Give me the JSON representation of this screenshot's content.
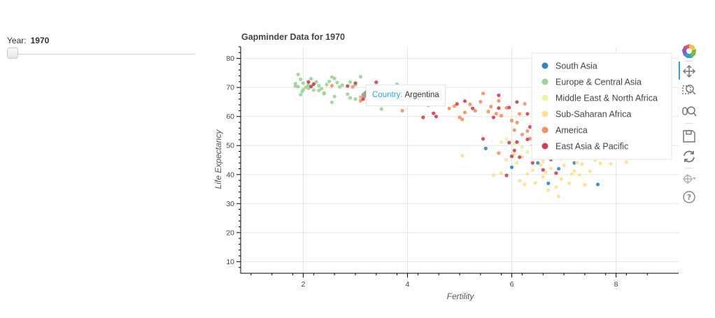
{
  "slider": {
    "label": "Year:",
    "value": "1970"
  },
  "tooltip": {
    "key": "Country:",
    "value": "Argentina"
  },
  "toolbar": {
    "items": [
      {
        "icon": "bokeh-logo-icon"
      },
      {
        "icon": "pan-icon"
      },
      {
        "icon": "box-zoom-icon"
      },
      {
        "icon": "wheel-zoom-icon"
      },
      {
        "icon": "save-icon"
      },
      {
        "icon": "reset-icon"
      },
      {
        "icon": "hover-icon"
      },
      {
        "icon": "help-icon"
      }
    ],
    "active_color": "#26aae1"
  },
  "chart_data": {
    "type": "scatter",
    "title": "Gapminder Data for 1970",
    "xlabel": "Fertility",
    "ylabel": "Life Expectancy",
    "xlim": [
      0.8,
      9.2
    ],
    "ylim": [
      6,
      84
    ],
    "x_ticks": [
      2,
      4,
      6,
      8
    ],
    "y_ticks": [
      10,
      20,
      30,
      40,
      50,
      60,
      70,
      80
    ],
    "grid": true,
    "legend_position": "top-right",
    "series": [
      {
        "name": "South Asia",
        "color": "#3288bd",
        "points": [
          [
            5.5,
            49
          ],
          [
            6.0,
            42.5
          ],
          [
            6.5,
            44
          ],
          [
            6.7,
            37
          ],
          [
            7.2,
            44
          ],
          [
            7.65,
            36.6
          ],
          [
            6.9,
            42
          ]
        ]
      },
      {
        "name": "Europe & Central Asia",
        "color": "#99d594",
        "points": [
          [
            1.9,
            74.5
          ],
          [
            1.95,
            72.8
          ],
          [
            2.0,
            71.5
          ],
          [
            1.85,
            70.5
          ],
          [
            2.05,
            70.1
          ],
          [
            2.1,
            69.7
          ],
          [
            2.0,
            69.2
          ],
          [
            1.98,
            68.6
          ],
          [
            2.2,
            71.3
          ],
          [
            2.3,
            70.6
          ],
          [
            2.35,
            69.6
          ],
          [
            2.45,
            71.0
          ],
          [
            2.5,
            72.1
          ],
          [
            2.55,
            73.6
          ],
          [
            2.6,
            73.1
          ],
          [
            2.65,
            71.7
          ],
          [
            2.7,
            70.2
          ],
          [
            2.2,
            69.1
          ],
          [
            2.9,
            71.9
          ],
          [
            3.0,
            70.9
          ],
          [
            3.1,
            73.7
          ],
          [
            2.4,
            68.1
          ],
          [
            2.6,
            66.9
          ],
          [
            2.9,
            66.4
          ],
          [
            3.1,
            66.7
          ],
          [
            2.55,
            64.9
          ],
          [
            3.5,
            62.6
          ],
          [
            3.8,
            71.1
          ],
          [
            1.9,
            70.3
          ],
          [
            2.1,
            70.8
          ],
          [
            2.15,
            73.0
          ],
          [
            2.25,
            71.9
          ],
          [
            2.3,
            69.0
          ],
          [
            2.4,
            67.9
          ],
          [
            1.95,
            67.5
          ],
          [
            1.85,
            71.3
          ],
          [
            2.75,
            70.8
          ],
          [
            2.85,
            67.7
          ],
          [
            3.0,
            66.0
          ]
        ]
      },
      {
        "name": "Middle East & North Africa",
        "color": "#e6f598",
        "points": [
          [
            5.9,
            52.2
          ],
          [
            6.05,
            50.8
          ],
          [
            6.2,
            49.4
          ],
          [
            6.6,
            50.0
          ],
          [
            7.1,
            52.7
          ],
          [
            7.3,
            56.1
          ],
          [
            6.8,
            57.3
          ],
          [
            6.4,
            58.6
          ],
          [
            7.2,
            55.2
          ],
          [
            6.3,
            47.8
          ],
          [
            5.8,
            51.1
          ],
          [
            6.9,
            54.6
          ],
          [
            7.0,
            56.5
          ]
        ]
      },
      {
        "name": "Sub-Saharan Africa",
        "color": "#fee08b",
        "points": [
          [
            5.05,
            46.5
          ],
          [
            5.65,
            39.8
          ],
          [
            5.8,
            40.5
          ],
          [
            5.9,
            45.1
          ],
          [
            6.1,
            44.0
          ],
          [
            6.15,
            37.8
          ],
          [
            6.25,
            36.6
          ],
          [
            6.3,
            40.2
          ],
          [
            6.4,
            41.5
          ],
          [
            6.45,
            37.1
          ],
          [
            6.55,
            43.3
          ],
          [
            6.6,
            39.2
          ],
          [
            6.65,
            40.8
          ],
          [
            6.7,
            34.6
          ],
          [
            6.75,
            42.1
          ],
          [
            6.85,
            35.7
          ],
          [
            6.9,
            32.5
          ],
          [
            6.95,
            45.4
          ],
          [
            7.0,
            43.2
          ],
          [
            7.1,
            37.0
          ],
          [
            7.2,
            41.2
          ],
          [
            7.25,
            44.1
          ],
          [
            7.3,
            39.9
          ],
          [
            7.35,
            43.6
          ],
          [
            7.4,
            36.4
          ],
          [
            7.5,
            41.1
          ],
          [
            7.6,
            45.0
          ],
          [
            7.7,
            43.9
          ],
          [
            7.9,
            43.7
          ],
          [
            8.2,
            44.3
          ],
          [
            6.7,
            47.6
          ],
          [
            6.8,
            49.4
          ],
          [
            6.5,
            46.3
          ],
          [
            7.0,
            51.0
          ],
          [
            6.2,
            46.0
          ],
          [
            6.6,
            44.7
          ],
          [
            7.15,
            40.2
          ],
          [
            6.05,
            47.0
          ],
          [
            6.95,
            38.5
          ],
          [
            7.45,
            47.1
          ]
        ]
      },
      {
        "name": "America",
        "color": "#fc8d59",
        "points": [
          [
            3.2,
            67.5
          ],
          [
            3.3,
            69.2
          ],
          [
            3.1,
            65.4
          ],
          [
            3.15,
            66.9
          ],
          [
            3.9,
            62.0
          ],
          [
            4.4,
            63.9
          ],
          [
            4.8,
            62.8
          ],
          [
            5.0,
            59.7
          ],
          [
            5.1,
            61.4
          ],
          [
            5.2,
            64.2
          ],
          [
            5.3,
            62.0
          ],
          [
            5.4,
            65.1
          ],
          [
            5.45,
            67.9
          ],
          [
            5.6,
            63.4
          ],
          [
            5.7,
            61.0
          ],
          [
            5.75,
            65.4
          ],
          [
            5.8,
            60.3
          ],
          [
            5.9,
            63.0
          ],
          [
            6.0,
            58.6
          ],
          [
            6.05,
            55.3
          ],
          [
            6.1,
            57.9
          ],
          [
            6.15,
            60.9
          ],
          [
            6.2,
            53.8
          ],
          [
            6.3,
            55.0
          ],
          [
            6.35,
            52.4
          ],
          [
            6.4,
            50.2
          ],
          [
            5.75,
            47.4
          ],
          [
            5.05,
            59.0
          ],
          [
            4.9,
            63.6
          ],
          [
            2.95,
            70.2
          ],
          [
            2.55,
            70.6
          ],
          [
            5.55,
            61.7
          ],
          [
            6.25,
            64.4
          ]
        ]
      },
      {
        "name": "East Asia & Pacific",
        "color": "#d53e4f",
        "points": [
          [
            2.1,
            71.9
          ],
          [
            2.2,
            71.1
          ],
          [
            2.15,
            70.3
          ],
          [
            2.85,
            70.5
          ],
          [
            3.0,
            71.5
          ],
          [
            3.4,
            71.8
          ],
          [
            3.15,
            66.0
          ],
          [
            4.3,
            59.7
          ],
          [
            4.5,
            61.1
          ],
          [
            4.55,
            60.0
          ],
          [
            4.95,
            64.3
          ],
          [
            5.1,
            65.3
          ],
          [
            5.25,
            62.8
          ],
          [
            5.45,
            52.3
          ],
          [
            5.65,
            59.7
          ],
          [
            5.75,
            62.9
          ],
          [
            5.9,
            39.7
          ],
          [
            5.95,
            51.0
          ],
          [
            6.0,
            46.3
          ],
          [
            6.05,
            48.3
          ],
          [
            6.1,
            51.2
          ],
          [
            6.15,
            46.0
          ],
          [
            6.3,
            52.1
          ],
          [
            6.35,
            56.4
          ],
          [
            6.4,
            44.0
          ],
          [
            6.45,
            50.4
          ],
          [
            6.5,
            49.0
          ],
          [
            6.6,
            41.6
          ],
          [
            6.75,
            45.2
          ],
          [
            6.85,
            40.5
          ],
          [
            6.55,
            48.4
          ],
          [
            6.3,
            60.9
          ],
          [
            6.45,
            56.9
          ],
          [
            6.7,
            55.6
          ],
          [
            5.75,
            67.3
          ],
          [
            6.1,
            65.0
          ],
          [
            5.95,
            63.1
          ],
          [
            3.6,
            67.1
          ]
        ]
      }
    ]
  }
}
